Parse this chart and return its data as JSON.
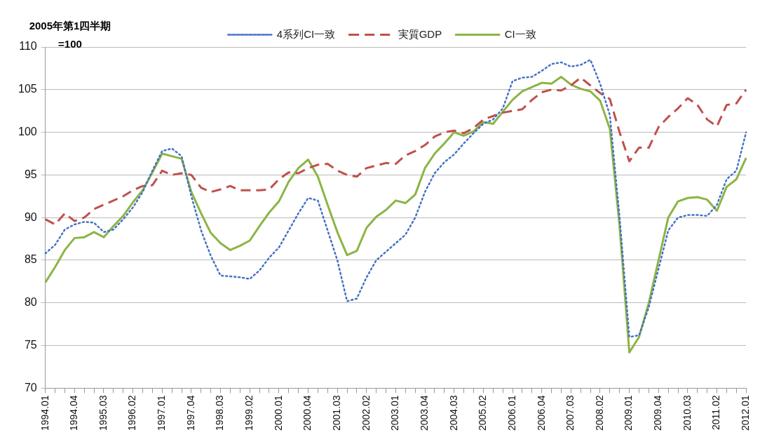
{
  "chart_data": {
    "type": "line",
    "ylabel": "2005年第1四半期\n=100",
    "categories": [
      "1994.01",
      null,
      null,
      "1994.04",
      null,
      null,
      "1995.03",
      null,
      null,
      "1996.02",
      null,
      null,
      "1997.01",
      null,
      null,
      "1997.04",
      null,
      null,
      "1998.03",
      null,
      null,
      "1999.02",
      null,
      null,
      "2000.01",
      null,
      null,
      "2000.04",
      null,
      null,
      "2001.03",
      null,
      null,
      "2002.02",
      null,
      null,
      "2003.01",
      null,
      null,
      "2003.04",
      null,
      null,
      "2004.03",
      null,
      null,
      "2005.02",
      null,
      null,
      "2006.01",
      null,
      null,
      "2006.04",
      null,
      null,
      "2007.03",
      null,
      null,
      "2008.02",
      null,
      null,
      "2009.01",
      null,
      null,
      "2009.04",
      null,
      null,
      "2010.03",
      null,
      null,
      "2011.02",
      null,
      null,
      "2012.01"
    ],
    "series": [
      {
        "name": "4系列CI一致",
        "color": "#4472c4",
        "line_style": "dotted",
        "values": [
          85.8,
          86.8,
          88.6,
          89.2,
          89.5,
          89.4,
          88.3,
          88.6,
          89.8,
          91.2,
          93.0,
          95.5,
          97.8,
          98.1,
          97.2,
          92.5,
          88.5,
          85.5,
          83.2,
          83.1,
          83.0,
          82.8,
          83.8,
          85.3,
          86.5,
          88.5,
          90.5,
          92.3,
          92.0,
          88.5,
          85.0,
          80.2,
          80.5,
          83.0,
          85.0,
          86.0,
          87.0,
          88.0,
          90.0,
          93.0,
          95.2,
          96.5,
          97.4,
          98.7,
          99.9,
          101.0,
          101.5,
          102.8,
          106.0,
          106.4,
          106.5,
          107.2,
          108.0,
          108.2,
          107.7,
          107.9,
          108.5,
          105.7,
          102.0,
          90.0,
          76.0,
          76.2,
          79.5,
          84.0,
          88.5,
          90.0,
          90.3,
          90.3,
          90.2,
          91.5,
          94.5,
          95.5,
          100.0
        ]
      },
      {
        "name": "実質GDP",
        "color": "#c0504d",
        "line_style": "dashed",
        "values": [
          89.8,
          89.2,
          90.5,
          89.6,
          90.0,
          91.0,
          91.5,
          92.0,
          92.5,
          93.2,
          93.7,
          93.8,
          95.5,
          95.0,
          95.2,
          95.0,
          93.5,
          93.0,
          93.3,
          93.7,
          93.2,
          93.2,
          93.2,
          93.3,
          94.5,
          95.3,
          95.2,
          95.8,
          96.2,
          96.3,
          95.5,
          95.0,
          94.8,
          95.8,
          96.1,
          96.4,
          96.3,
          97.3,
          97.8,
          98.5,
          99.5,
          100.0,
          100.2,
          99.9,
          100.5,
          101.5,
          101.9,
          102.3,
          102.5,
          102.7,
          103.8,
          104.7,
          105.0,
          104.9,
          105.5,
          106.4,
          105.5,
          104.6,
          103.9,
          100.0,
          96.6,
          98.2,
          98.2,
          100.6,
          101.8,
          102.8,
          104.0,
          103.2,
          101.5,
          100.7,
          103.2,
          103.4,
          105.0
        ]
      },
      {
        "name": "CI一致",
        "color": "#8cb445",
        "line_style": "solid",
        "values": [
          82.4,
          84.2,
          86.2,
          87.6,
          87.7,
          88.3,
          87.7,
          89.0,
          90.2,
          91.8,
          93.2,
          95.3,
          97.5,
          97.2,
          96.9,
          93.0,
          90.5,
          88.2,
          87.0,
          86.2,
          86.7,
          87.3,
          89.0,
          90.6,
          91.9,
          94.2,
          95.8,
          96.8,
          94.8,
          91.5,
          88.3,
          85.6,
          86.1,
          88.8,
          90.1,
          90.9,
          92.0,
          91.7,
          92.7,
          95.8,
          97.5,
          98.7,
          100.0,
          99.6,
          100.1,
          101.2,
          101.0,
          102.4,
          103.8,
          104.8,
          105.3,
          105.8,
          105.7,
          106.5,
          105.6,
          105.1,
          104.8,
          103.7,
          100.4,
          89.0,
          74.2,
          76.0,
          80.0,
          85.0,
          90.0,
          91.9,
          92.3,
          92.4,
          92.1,
          90.8,
          93.6,
          94.5,
          97.0
        ]
      }
    ],
    "ylim": [
      70,
      110
    ],
    "yticks": [
      70,
      75,
      80,
      85,
      90,
      95,
      100,
      105,
      110
    ],
    "grid": "y",
    "legend": "top",
    "marker": "none"
  }
}
